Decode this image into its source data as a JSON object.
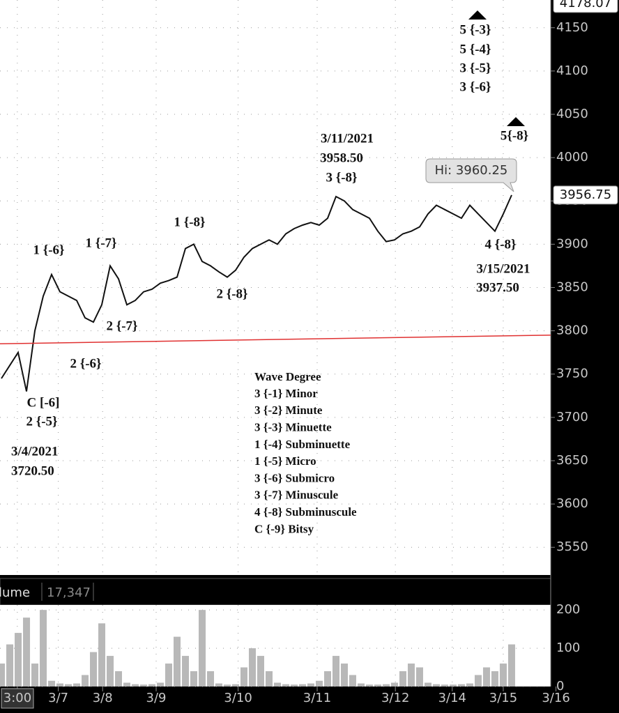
{
  "chart_data": [
    {
      "type": "line",
      "series": [
        {
          "name": "Price",
          "color": "#111111",
          "values": [
            3745,
            3760,
            3775,
            3730,
            3800,
            3840,
            3865,
            3845,
            3840,
            3835,
            3815,
            3810,
            3830,
            3875,
            3860,
            3830,
            3835,
            3845,
            3848,
            3855,
            3858,
            3862,
            3895,
            3900,
            3880,
            3875,
            3868,
            3862,
            3870,
            3885,
            3895,
            3900,
            3905,
            3900,
            3912,
            3918,
            3922,
            3925,
            3922,
            3930,
            3955,
            3950,
            3940,
            3935,
            3930,
            3915,
            3903,
            3905,
            3912,
            3915,
            3920,
            3935,
            3945,
            3940,
            3935,
            3930,
            3945,
            3935,
            3925,
            3915,
            3935,
            3956.75
          ]
        }
      ],
      "trend_line": {
        "color": "#e03030",
        "values": [
          3785,
          3795
        ]
      },
      "xlim": [
        -0.17,
        65.67
      ],
      "ylim": [
        3518,
        4182
      ],
      "yticks": [
        3550,
        3600,
        3650,
        3700,
        3750,
        3800,
        3850,
        3900,
        3950,
        4000,
        4050,
        4100,
        4150
      ],
      "price_markers": [
        {
          "value": 4178.07,
          "label": "4178.07"
        },
        {
          "value": 3956.75,
          "label": "3956.75"
        }
      ],
      "high_label": "Hi: 3960.25",
      "grid": true,
      "annotations": [
        "5 {-3}",
        "5 {-4}",
        "3 {-5}",
        "3 {-6}",
        "5{-8}",
        "3/11/2021",
        "3958.50",
        "3 {-8}",
        "1 {-8}",
        "1 {-6}",
        "1 {-7}",
        "2 {-8}",
        "2 {-7}",
        "2 {-6}",
        "C [-6]",
        "2 {-5}",
        "3/4/2021",
        "3720.50",
        "4 {-8}",
        "3/15/2021",
        "3937.50"
      ],
      "legend_title": "Wave Degree",
      "legend_items": [
        "3 {-1} Minor",
        "3 {-2} Minute",
        "3 {-3} Minuette",
        "1 {-4} Subminuette",
        "1 {-5} Micro",
        "3 {-6} Submicro",
        "3 {-7} Minuscule",
        "4 {-8} Subminuscule",
        "C {-9} Bitsy"
      ]
    },
    {
      "type": "bar",
      "title": "lume",
      "current_value_label": "17,347",
      "color": "#b8b8b8",
      "values": [
        60,
        110,
        140,
        180,
        60,
        200,
        15,
        8,
        6,
        8,
        30,
        90,
        165,
        80,
        40,
        10,
        6,
        5,
        6,
        10,
        60,
        130,
        80,
        40,
        200,
        40,
        8,
        5,
        6,
        50,
        100,
        80,
        40,
        10,
        6,
        5,
        6,
        8,
        15,
        40,
        80,
        60,
        30,
        8,
        5,
        5,
        6,
        10,
        40,
        60,
        50,
        10,
        6,
        5,
        5,
        6,
        8,
        30,
        50,
        40,
        60,
        110
      ],
      "xlim": [
        -0.17,
        65.67
      ],
      "ylim": [
        0,
        213
      ],
      "yticks": [
        0,
        100,
        200
      ],
      "xticks": [
        {
          "value": 1.9,
          "label": "3:00"
        },
        {
          "value": 6.8,
          "label": "3/7"
        },
        {
          "value": 12.1,
          "label": "3/8"
        },
        {
          "value": 18.5,
          "label": "3/9"
        },
        {
          "value": 28.3,
          "label": "3/10"
        },
        {
          "value": 37.75,
          "label": "3/11"
        },
        {
          "value": 47.1,
          "label": "3/12"
        },
        {
          "value": 53.9,
          "label": "3/14"
        },
        {
          "value": 60,
          "label": "3/15"
        },
        {
          "value": 66.3,
          "label": "3/16"
        }
      ],
      "grid": true
    }
  ]
}
